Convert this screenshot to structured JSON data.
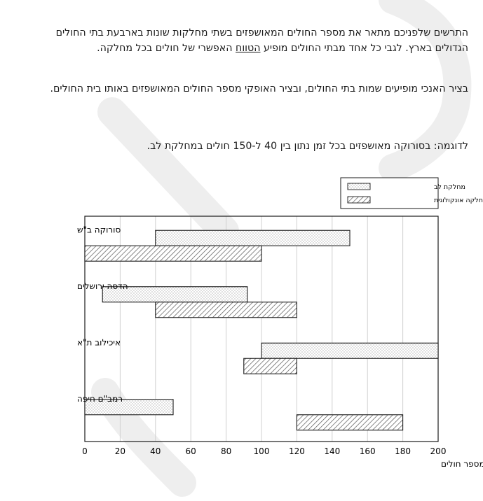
{
  "text": {
    "para1_before": "התרשים שלפניכם מתאר את מספר החולים המאושפזים בשתי מחלקות שונות בארבעת בתי החולים הגדולים בארץ. לגבי כל אחד מבתי החולים מופיע ",
    "para1_underlined": "הטווח",
    "para1_after": " האפשרי של חולים בכל מחלקה.",
    "para2": "בציר האנכי מופיעים שמות בתי החולים, ובציר האופקי מספר החולים המאושפזים באותו בית החולים.",
    "example": "לדוגמה: בסורוקה מאושפזים בכל זמן נתון בין 40 ל-150 חולים במחלקת לב."
  },
  "chart_data": {
    "type": "bar",
    "orientation": "horizontal",
    "representation": "range",
    "categories": [
      "סורוקה ב\"ש",
      "הדסה ירושלים",
      "איכילוב ת\"א",
      "רמב\"ם חיפה"
    ],
    "series": [
      {
        "name": "מחלקת לב",
        "pattern": "dotted",
        "ranges": [
          [
            40,
            150
          ],
          [
            10,
            92
          ],
          [
            100,
            200
          ],
          [
            0,
            50
          ]
        ]
      },
      {
        "name": "מחלקה אונקולוגית",
        "pattern": "hatched",
        "ranges": [
          [
            0,
            100
          ],
          [
            40,
            120
          ],
          [
            90,
            120
          ],
          [
            120,
            180
          ]
        ]
      }
    ],
    "xlim": [
      0,
      200
    ],
    "xticks": [
      "0",
      "20",
      "40",
      "60",
      "80",
      "100",
      "120",
      "140",
      "160",
      "180",
      "200"
    ],
    "xlabel": "מספר חולים",
    "ylabel": "",
    "title": "",
    "grid": "vertical",
    "legend_position": "top-right"
  },
  "colors": {
    "text": "#1a1a1a",
    "bar_fill": "#ffffff",
    "pattern": "#555555",
    "gridline": "#d0d0d0",
    "watermark": "#e5e5e5"
  }
}
